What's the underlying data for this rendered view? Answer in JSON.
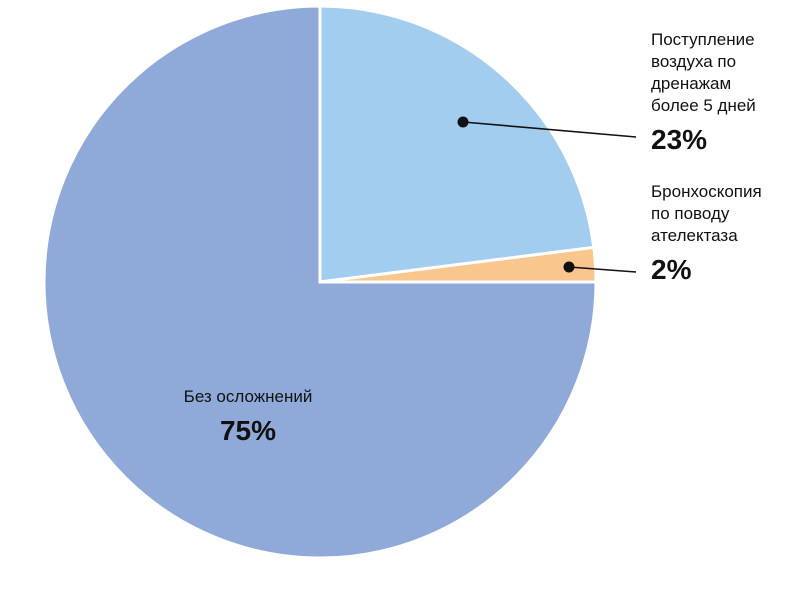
{
  "chart_data": {
    "type": "pie",
    "title": "",
    "slices": [
      {
        "label_lines": [
          "Поступление",
          "воздуха по",
          "дренажам",
          "более 5 дней"
        ],
        "value": 23,
        "value_label": "23%",
        "color": "#a3cdef"
      },
      {
        "label_lines": [
          "Бронхоскопия",
          "по поводу",
          "ателектаза"
        ],
        "value": 2,
        "value_label": "2%",
        "color": "#f9c68d"
      },
      {
        "label_lines": [
          "Без осложнений"
        ],
        "value": 75,
        "value_label": "75%",
        "color": "#8fa9d8"
      }
    ],
    "start": "12 o'clock",
    "direction": "clockwise"
  }
}
